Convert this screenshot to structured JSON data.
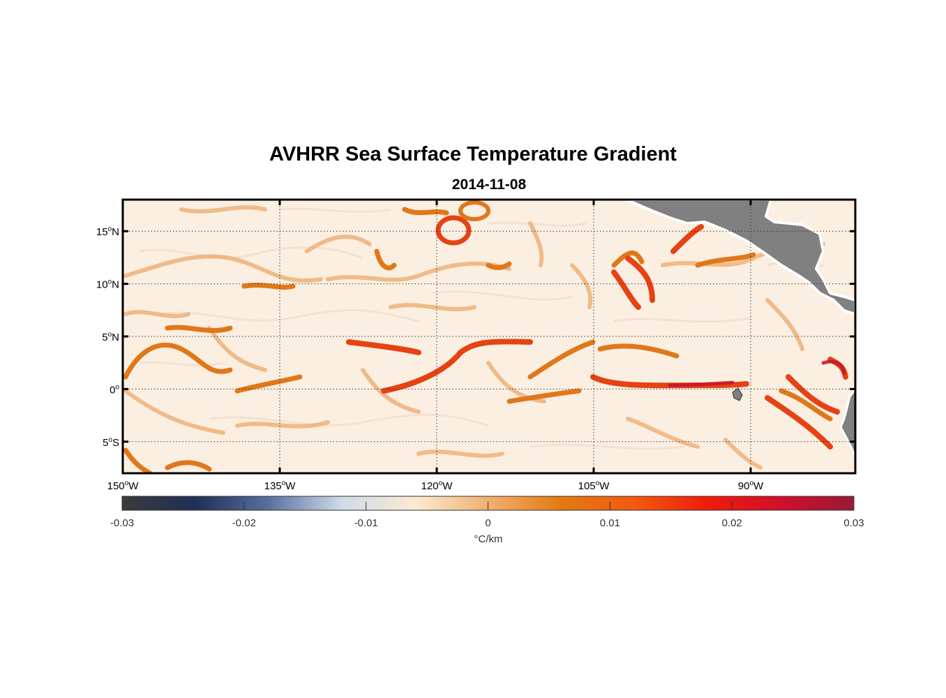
{
  "title": "AVHRR Sea Surface Temperature Gradient",
  "subtitle": "2014-11-08",
  "map": {
    "lon_range": [
      -150,
      -80
    ],
    "lat_range": [
      -8,
      18
    ],
    "lon_ticks": [
      {
        "value": -150,
        "label": "150",
        "deg": "o",
        "dir": "W"
      },
      {
        "value": -135,
        "label": "135",
        "deg": "o",
        "dir": "W"
      },
      {
        "value": -120,
        "label": "120",
        "deg": "o",
        "dir": "W"
      },
      {
        "value": -105,
        "label": "105",
        "deg": "o",
        "dir": "W"
      },
      {
        "value": -90,
        "label": "90",
        "deg": "o",
        "dir": "W"
      }
    ],
    "lat_ticks": [
      {
        "value": 15,
        "label": "15",
        "deg": "o",
        "dir": "N"
      },
      {
        "value": 10,
        "label": "10",
        "deg": "o",
        "dir": "N"
      },
      {
        "value": 5,
        "label": "5",
        "deg": "o",
        "dir": "N"
      },
      {
        "value": 0,
        "label": "0",
        "deg": "o",
        "dir": ""
      },
      {
        "value": -5,
        "label": "5",
        "deg": "o",
        "dir": "S"
      }
    ],
    "grid": "dotted",
    "land_color": "#808080",
    "ocean_background": "#fbefe2"
  },
  "colorbar": {
    "range": [
      -0.03,
      0.03
    ],
    "ticks": [
      "-0.03",
      "-0.02",
      "-0.01",
      "0",
      "0.01",
      "0.02",
      "0.03"
    ],
    "tick_values": [
      -0.03,
      -0.02,
      -0.01,
      0,
      0.01,
      0.02,
      0.03
    ],
    "units": "°C/km",
    "colors": [
      "#3a3a3a",
      "#1f2f55",
      "#5a6fa0",
      "#cfdbe8",
      "#fbebd2",
      "#f0b070",
      "#e37a12",
      "#f25a10",
      "#ee1c0a",
      "#d0102a",
      "#9a1838"
    ]
  }
}
